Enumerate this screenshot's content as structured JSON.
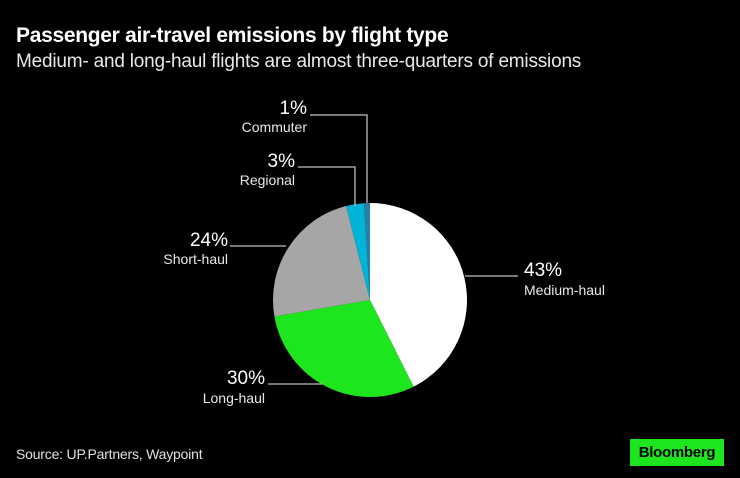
{
  "header": {
    "title": "Passenger air-travel emissions by flight type",
    "subtitle": "Medium- and long-haul flights are almost three-quarters of emissions"
  },
  "footer": {
    "source": "Source: UP.Partners, Waypoint",
    "brand": "Bloomberg"
  },
  "colors": {
    "background": "#000000",
    "medium_haul": "#ffffff",
    "long_haul": "#1ee61e",
    "short_haul": "#a6a6a6",
    "regional": "#00b4d8",
    "commuter": "#2a7fa8",
    "brand_badge": "#1ee61e"
  },
  "chart_data": {
    "type": "pie",
    "title": "Passenger air-travel emissions by flight type",
    "subtitle": "Medium- and long-haul flights are almost three-quarters of emissions",
    "start_angle": "12 o'clock, clockwise",
    "categories": [
      "Medium-haul",
      "Long-haul",
      "Short-haul",
      "Regional",
      "Commuter"
    ],
    "values": [
      43,
      30,
      24,
      3,
      1
    ],
    "labels": [
      "43%",
      "30%",
      "24%",
      "3%",
      "1%"
    ],
    "unit": "%",
    "legend": "none (direct labels with leader lines)"
  },
  "labels": [
    {
      "pct": "43%",
      "name": "Medium-haul"
    },
    {
      "pct": "30%",
      "name": "Long-haul"
    },
    {
      "pct": "24%",
      "name": "Short-haul"
    },
    {
      "pct": "3%",
      "name": "Regional"
    },
    {
      "pct": "1%",
      "name": "Commuter"
    }
  ]
}
